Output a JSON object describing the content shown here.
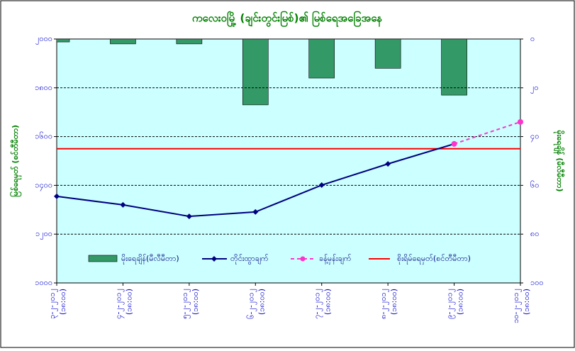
{
  "chart_data": {
    "type": "combo",
    "title": "ကလေးဝမြို့ (ချင်းတွင်းမြစ်)၏ မြစ်ရေအခြေအနေ",
    "y_label": "မြစ်ရေမှတ် (စင်တီမီတာ)",
    "y2_label": "မိုးရေချိန် (မီလီမီတာ)",
    "categories": [
      [
        "၃-၂-၂၀၁၂",
        "(၁၈:၀၀)"
      ],
      [
        "၄-၂-၂၀၁၂",
        "(၁၈:၀၀)"
      ],
      [
        "၅-၂-၂၀၁၂",
        "(၁၈:၀၀)"
      ],
      [
        "၆-၂-၂၀၁၂",
        "(၁၈:၀၀)"
      ],
      [
        "၇-၂-၂၀၁၂",
        "(၁၈:၀၀)"
      ],
      [
        "၈-၂-၂၀၁၂",
        "(၁၈:၀၀)"
      ],
      [
        "၉-၂-၂၀၁၂",
        "(၁၈:၀၀)"
      ],
      [
        "၁၀-၂-၂၀၁၂",
        "(၁၈:၀၀)"
      ]
    ],
    "ylim": [
      1000,
      2000
    ],
    "yticks": [
      {
        "value": 1000,
        "label": "၁၀၀၀"
      },
      {
        "value": 1200,
        "label": "၁၂၀၀"
      },
      {
        "value": 1400,
        "label": "၁၄၀၀"
      },
      {
        "value": 1600,
        "label": "၁၆၀၀"
      },
      {
        "value": 1800,
        "label": "၁၈၀၀"
      },
      {
        "value": 2000,
        "label": "၂၀၀၀"
      }
    ],
    "y2lim": [
      100,
      0
    ],
    "y2ticks": [
      {
        "value": 0,
        "label": "၀"
      },
      {
        "value": 20,
        "label": "၂၀"
      },
      {
        "value": 40,
        "label": "၄၀"
      },
      {
        "value": 60,
        "label": "၆၀"
      },
      {
        "value": 80,
        "label": "၈၀"
      },
      {
        "value": 100,
        "label": "၁၀၀"
      }
    ],
    "grid": true,
    "series": [
      {
        "name": "မိုးရေချိန်(မီလီမီတာ)",
        "kind": "bar",
        "axis": "y2",
        "color": "#339966",
        "values": [
          1.2,
          2,
          2,
          27,
          16,
          12,
          23,
          null
        ]
      },
      {
        "name": "တိုင်းထွာချက်",
        "kind": "line",
        "color": "#000080",
        "values": [
          1355,
          1320,
          1273,
          1291,
          1401,
          1488,
          1570,
          null
        ]
      },
      {
        "name": "ခန့်မှန်းချက်",
        "kind": "dashed",
        "color": "#ff33cc",
        "values": [
          null,
          null,
          null,
          null,
          null,
          null,
          1570,
          1660
        ]
      },
      {
        "name": "စိုးရိမ်ရေမှတ်(စင်တီမီတာ)",
        "kind": "level",
        "color": "#ff0000",
        "value": 1550
      }
    ]
  }
}
